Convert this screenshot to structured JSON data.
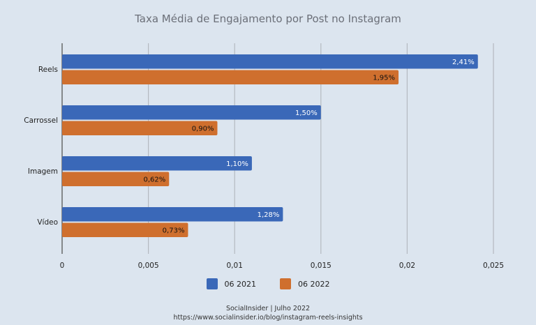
{
  "chart_data": {
    "type": "bar",
    "orientation": "horizontal",
    "title": "Taxa Média de Engajamento por Post no Instagram",
    "categories": [
      "Reels",
      "Carrossel",
      "Imagem",
      "Vídeo"
    ],
    "series": [
      {
        "name": "06 2021",
        "color": "#3a68b8",
        "values": [
          0.0241,
          0.015,
          0.011,
          0.0128
        ],
        "labels": [
          "2,41%",
          "1,50%",
          "1,10%",
          "1,28%"
        ]
      },
      {
        "name": "06 2022",
        "color": "#cf6f2e",
        "values": [
          0.0195,
          0.009,
          0.0062,
          0.0073
        ],
        "labels": [
          "1,95%",
          "0,90%",
          "0,62%",
          "0,73%"
        ]
      }
    ],
    "xlim": [
      0,
      0.025
    ],
    "xticks": [
      "0",
      "0,005",
      "0,01",
      "0,015",
      "0,02",
      "0,025"
    ],
    "grid": true,
    "legend": "bottom"
  },
  "footer": {
    "source": "SocialInsider | Julho 2022",
    "url": "https://www.socialinsider.io/blog/instagram-reels-insights"
  }
}
